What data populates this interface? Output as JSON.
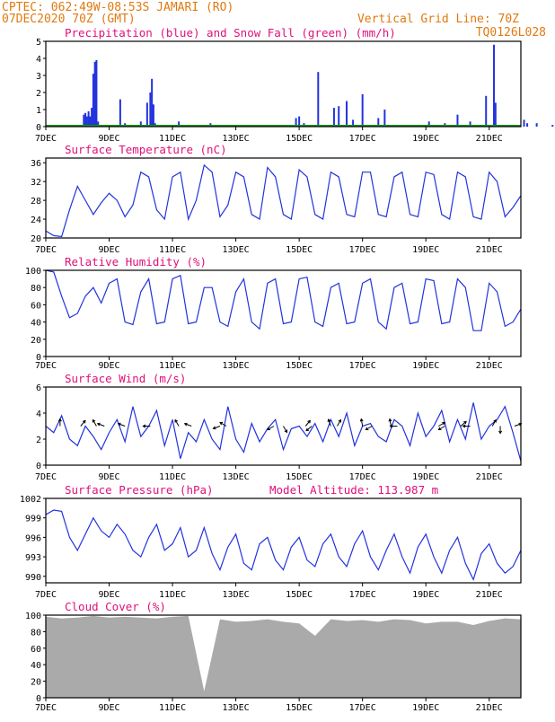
{
  "header": {
    "line1": "CPTEC:    062:49W-08:53S   JAMARI (RO)",
    "line2": "07DEC2020 70Z (GMT)",
    "grid_note": "Vertical Grid Line: 70Z",
    "code": "TQ0126L028"
  },
  "x_labels": [
    "7DEC",
    "9DEC",
    "11DEC",
    "13DEC",
    "15DEC",
    "17DEC",
    "19DEC",
    "21DEC"
  ],
  "colors": {
    "header": "#e07a10",
    "title": "#e0107a",
    "line": "#2233dd",
    "snow": "#119911",
    "cloud": "#aaaaaa"
  },
  "chart_data": [
    {
      "type": "bar",
      "title": "Precipitation (blue) and Snow Fall (green) (mm/h)",
      "ylim": [
        0,
        5
      ],
      "yticks": [
        0,
        1,
        2,
        3,
        4,
        5
      ],
      "x_range_days": [
        0,
        15
      ],
      "series": [
        {
          "name": "Precipitation",
          "x": [
            1.2,
            1.25,
            1.3,
            1.35,
            1.4,
            1.45,
            1.5,
            1.55,
            1.6,
            1.65,
            2.2,
            2.35,
            2.5,
            3.0,
            3.2,
            3.3,
            3.35,
            3.4,
            3.45,
            3.5,
            4.0,
            4.2,
            5.2,
            5.3,
            7.9,
            8.0,
            8.15,
            8.6,
            9.1,
            9.25,
            9.5,
            9.7,
            10.0,
            10.5,
            10.7,
            12.1,
            12.6,
            13.0,
            13.2,
            13.4,
            13.9,
            14.15,
            14.2,
            14.5,
            15.1,
            15.2,
            15.5,
            16.0,
            16.5,
            16.7,
            16.8,
            16.9,
            17.0,
            17.3,
            17.4,
            17.5,
            17.6
          ],
          "values": [
            0.7,
            0.8,
            0.6,
            0.9,
            0.6,
            1.1,
            3.1,
            3.8,
            3.9,
            0.3,
            0.1,
            1.6,
            0.2,
            0.3,
            1.4,
            2.0,
            2.8,
            1.3,
            0.2,
            0.1,
            0.1,
            0.3,
            0.2,
            0.1,
            0.5,
            0.6,
            0.2,
            3.2,
            1.1,
            1.2,
            1.5,
            0.4,
            1.9,
            0.5,
            1.0,
            0.3,
            0.2,
            0.7,
            0.1,
            0.3,
            1.8,
            4.8,
            1.4,
            0.1,
            0.4,
            0.2,
            0.2,
            0.1,
            0.1,
            0.1,
            0.1,
            0.1,
            0.1,
            0.5,
            0.4,
            0.6,
            0.7
          ]
        },
        {
          "name": "Snow Fall",
          "values": [
            0
          ]
        }
      ]
    },
    {
      "type": "line",
      "title": "Surface Temperature (nC)",
      "ylim": [
        20,
        37
      ],
      "yticks": [
        20,
        24,
        28,
        32,
        36
      ],
      "x_range_days": [
        0,
        15
      ],
      "series": [
        {
          "name": "Temperature",
          "x": [
            0,
            0.25,
            0.5,
            0.75,
            1,
            1.25,
            1.5,
            1.75,
            2,
            2.25,
            2.5,
            2.75,
            3,
            3.25,
            3.5,
            3.75,
            4,
            4.25,
            4.5,
            4.75,
            5,
            5.25,
            5.5,
            5.75,
            6,
            6.25,
            6.5,
            6.75,
            7,
            7.25,
            7.5,
            7.75,
            8,
            8.25,
            8.5,
            8.75,
            9,
            9.25,
            9.5,
            9.75,
            10,
            10.25,
            10.5,
            10.75,
            11,
            11.25,
            11.5,
            11.75,
            12,
            12.25,
            12.5,
            12.75,
            13,
            13.25,
            13.5,
            13.75,
            14,
            14.25,
            14.5,
            14.75,
            15
          ],
          "values": [
            21.5,
            20.5,
            20.3,
            26,
            31,
            28,
            25,
            27.5,
            29.5,
            28,
            24.5,
            27,
            34,
            33,
            26,
            24,
            33,
            34,
            24,
            28,
            35.5,
            34,
            24.5,
            27,
            34,
            33,
            25,
            24,
            35,
            33,
            25,
            24,
            34.5,
            33,
            25,
            24,
            34,
            33,
            25,
            24.5,
            34,
            34,
            25,
            24.5,
            33,
            34,
            25,
            24.5,
            34,
            33.5,
            25,
            24,
            34,
            33,
            24.5,
            24,
            34,
            32,
            24.5,
            26.5,
            29
          ]
        }
      ]
    },
    {
      "type": "line",
      "title": "Relative Humidity (%)",
      "ylim": [
        0,
        100
      ],
      "yticks": [
        0,
        20,
        40,
        60,
        80,
        100
      ],
      "x_range_days": [
        0,
        15
      ],
      "series": [
        {
          "name": "Relative Humidity",
          "x": [
            0,
            0.25,
            0.5,
            0.75,
            1,
            1.25,
            1.5,
            1.75,
            2,
            2.25,
            2.5,
            2.75,
            3,
            3.25,
            3.5,
            3.75,
            4,
            4.25,
            4.5,
            4.75,
            5,
            5.25,
            5.5,
            5.75,
            6,
            6.25,
            6.5,
            6.75,
            7,
            7.25,
            7.5,
            7.75,
            8,
            8.25,
            8.5,
            8.75,
            9,
            9.25,
            9.5,
            9.75,
            10,
            10.25,
            10.5,
            10.75,
            11,
            11.25,
            11.5,
            11.75,
            12,
            12.25,
            12.5,
            12.75,
            13,
            13.25,
            13.5,
            13.75,
            14,
            14.25,
            14.5,
            14.75,
            15
          ],
          "values": [
            100,
            98,
            70,
            45,
            50,
            70,
            80,
            62,
            85,
            90,
            40,
            37,
            75,
            90,
            38,
            40,
            90,
            94,
            38,
            40,
            80,
            80,
            40,
            35,
            75,
            90,
            40,
            32,
            85,
            90,
            38,
            40,
            90,
            92,
            40,
            35,
            80,
            85,
            38,
            40,
            85,
            90,
            40,
            32,
            80,
            85,
            38,
            40,
            90,
            88,
            38,
            40,
            90,
            80,
            30,
            30,
            85,
            75,
            35,
            40,
            55
          ]
        }
      ]
    },
    {
      "type": "line",
      "title": "Surface Wind (m/s)",
      "ylim": [
        0,
        6
      ],
      "yticks": [
        0,
        2,
        4,
        6
      ],
      "x_range_days": [
        0,
        15
      ],
      "series": [
        {
          "name": "Wind speed",
          "x": [
            0,
            0.25,
            0.5,
            0.75,
            1,
            1.25,
            1.5,
            1.75,
            2,
            2.25,
            2.5,
            2.75,
            3,
            3.25,
            3.5,
            3.75,
            4,
            4.25,
            4.5,
            4.75,
            5,
            5.25,
            5.5,
            5.75,
            6,
            6.25,
            6.5,
            6.75,
            7,
            7.25,
            7.5,
            7.75,
            8,
            8.25,
            8.5,
            8.75,
            9,
            9.25,
            9.5,
            9.75,
            10,
            10.25,
            10.5,
            10.75,
            11,
            11.25,
            11.5,
            11.75,
            12,
            12.25,
            12.5,
            12.75,
            13,
            13.25,
            13.5,
            13.75,
            14,
            14.25,
            14.5,
            14.75,
            15
          ],
          "values": [
            3,
            2.5,
            3.8,
            2,
            1.5,
            3,
            2.2,
            1.2,
            2.5,
            3.5,
            1.8,
            4.5,
            2.2,
            3,
            4.2,
            1.5,
            3.5,
            0.5,
            2.5,
            1.8,
            3.5,
            2,
            1.2,
            4.5,
            2,
            1,
            3.2,
            1.8,
            2.8,
            3.5,
            1.2,
            2.8,
            3,
            2.2,
            3.2,
            1.8,
            3.5,
            2.2,
            4,
            1.5,
            3,
            3.2,
            2.2,
            1.8,
            3.5,
            3,
            1.5,
            4,
            2.2,
            3,
            4.2,
            1.8,
            3.5,
            2,
            4.8,
            2,
            3,
            3.5,
            4.5,
            2.5,
            0.3
          ]
        }
      ],
      "arrows": [
        {
          "x": 0.45,
          "dir": -90
        },
        {
          "x": 1.1,
          "dir": -50
        },
        {
          "x": 1.6,
          "dir": -120
        },
        {
          "x": 1.85,
          "dir": -160
        },
        {
          "x": 2.5,
          "dir": -160
        },
        {
          "x": 3.3,
          "dir": -180
        },
        {
          "x": 4.2,
          "dir": -120
        },
        {
          "x": 4.6,
          "dir": -160
        },
        {
          "x": 5.5,
          "dir": -200
        },
        {
          "x": 5.7,
          "dir": -150
        },
        {
          "x": 7.2,
          "dir": -210
        },
        {
          "x": 7.5,
          "dir": 60
        },
        {
          "x": 8.2,
          "dir": -50
        },
        {
          "x": 8.4,
          "dir": -220
        },
        {
          "x": 9.0,
          "dir": -110
        },
        {
          "x": 9.2,
          "dir": -60
        },
        {
          "x": 10.0,
          "dir": -100
        },
        {
          "x": 10.3,
          "dir": -210
        },
        {
          "x": 10.9,
          "dir": -100
        },
        {
          "x": 11.1,
          "dir": -180
        },
        {
          "x": 12.4,
          "dir": -30
        },
        {
          "x": 12.6,
          "dir": -210
        },
        {
          "x": 13.1,
          "dir": -40
        },
        {
          "x": 13.4,
          "dir": -180
        },
        {
          "x": 14.1,
          "dir": -60
        },
        {
          "x": 14.35,
          "dir": 90
        },
        {
          "x": 14.8,
          "dir": -20
        }
      ]
    },
    {
      "type": "line",
      "title": "Surface Pressure (hPa)",
      "annotation": "Model Altitude: 113.987 m",
      "ylim": [
        989,
        1002
      ],
      "yticks": [
        990,
        993,
        996,
        999,
        1002
      ],
      "x_range_days": [
        0,
        15
      ],
      "series": [
        {
          "name": "Pressure",
          "x": [
            0,
            0.25,
            0.5,
            0.75,
            1,
            1.25,
            1.5,
            1.75,
            2,
            2.25,
            2.5,
            2.75,
            3,
            3.25,
            3.5,
            3.75,
            4,
            4.25,
            4.5,
            4.75,
            5,
            5.25,
            5.5,
            5.75,
            6,
            6.25,
            6.5,
            6.75,
            7,
            7.25,
            7.5,
            7.75,
            8,
            8.25,
            8.5,
            8.75,
            9,
            9.25,
            9.5,
            9.75,
            10,
            10.25,
            10.5,
            10.75,
            11,
            11.25,
            11.5,
            11.75,
            12,
            12.25,
            12.5,
            12.75,
            13,
            13.25,
            13.5,
            13.75,
            14,
            14.25,
            14.5,
            14.75,
            15
          ],
          "values": [
            999.5,
            1000.2,
            1000,
            996,
            994,
            996.5,
            999,
            997,
            996,
            998,
            996.5,
            994,
            993,
            996,
            998,
            994,
            995,
            997.5,
            993,
            994,
            997.5,
            993.5,
            991,
            994.5,
            996.5,
            992,
            991,
            995,
            996,
            992.5,
            991,
            994.5,
            996,
            992.5,
            991.5,
            995,
            996.5,
            993,
            991.5,
            995,
            997,
            993,
            991,
            994,
            996.5,
            993,
            990.5,
            994.5,
            996.5,
            993,
            990.5,
            994,
            996,
            992,
            989.5,
            993.5,
            995,
            992,
            990.5,
            991.5,
            994
          ]
        }
      ]
    },
    {
      "type": "bar",
      "title": "Cloud Cover (%)",
      "ylim": [
        0,
        100
      ],
      "yticks": [
        0,
        20,
        40,
        60,
        80,
        100
      ],
      "x_range_days": [
        0,
        15
      ],
      "series": [
        {
          "name": "Cloud Cover",
          "x": [
            0,
            0.5,
            1,
            1.5,
            2,
            2.5,
            3,
            3.5,
            4,
            4.5,
            5,
            5.5,
            6,
            6.5,
            7,
            7.5,
            8,
            8.5,
            9,
            9.5,
            10,
            10.5,
            11,
            11.5,
            12,
            12.5,
            13,
            13.5,
            14,
            14.5,
            15
          ],
          "values": [
            98,
            96,
            97,
            99,
            97,
            98,
            97,
            96,
            98,
            99,
            8,
            95,
            92,
            93,
            95,
            92,
            90,
            75,
            95,
            93,
            94,
            92,
            95,
            94,
            90,
            92,
            92,
            88,
            93,
            96,
            95
          ]
        }
      ]
    }
  ]
}
